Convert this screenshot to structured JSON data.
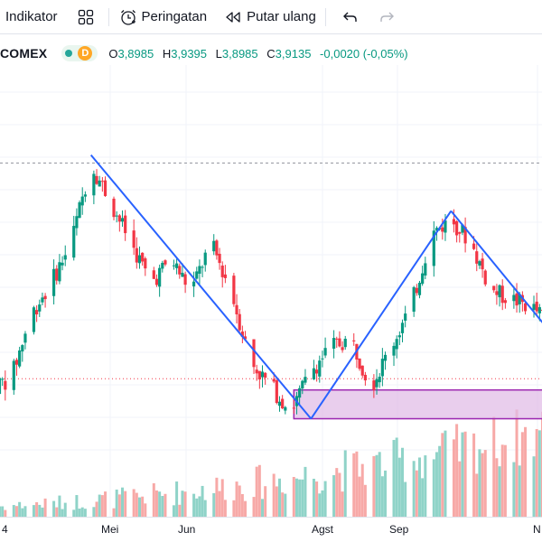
{
  "toolbar": {
    "indicator_label": "Indikator",
    "alert_label": "Peringatan",
    "replay_label": "Putar ulang"
  },
  "legend": {
    "symbol": "COMEX",
    "session_badge": "D",
    "open_label": "O",
    "open": "3,8985",
    "high_label": "H",
    "high": "3,9395",
    "low_label": "L",
    "low": "3,8985",
    "close_label": "C",
    "close": "3,9135",
    "change": "-0,0020 (-0,05%)"
  },
  "time_axis": {
    "left_edge_label": "4",
    "months": [
      "Mei",
      "Jun",
      "Agst",
      "Sep",
      "N"
    ]
  },
  "colors": {
    "up": "#089981",
    "down": "#f23645",
    "pattern_line": "#2962ff",
    "support_zone_fill": "#e1bee7",
    "support_zone_border": "#9c27b0",
    "up_volume": "#8fd3c8",
    "down_volume": "#f7a9a7"
  },
  "chart_data": {
    "type": "candlestick",
    "x_dates": [
      "2025-04-13",
      "2025-04-20",
      "2025-04-27",
      "2025-05-04",
      "2025-05-11",
      "2025-05-18",
      "2025-05-25",
      "2025-06-01",
      "2025-06-08",
      "2025-06-15",
      "2025-06-22",
      "2025-06-29",
      "2025-07-06",
      "2025-07-13",
      "2025-07-20",
      "2025-07-27",
      "2025-08-03",
      "2025-08-10",
      "2025-08-17",
      "2025-08-24",
      "2025-08-31",
      "2025-09-07",
      "2025-09-14",
      "2025-09-21",
      "2025-09-28",
      "2025-10-05",
      "2025-10-12",
      "2025-10-19",
      "2025-10-26"
    ],
    "close": [
      3.3,
      3.35,
      3.75,
      3.95,
      4.2,
      4.7,
      4.45,
      4.2,
      3.95,
      4.1,
      3.9,
      4.2,
      3.9,
      3.45,
      3.3,
      3.15,
      3.4,
      3.55,
      3.6,
      3.3,
      3.55,
      3.8,
      4.25,
      4.35,
      4.2,
      3.9,
      3.85,
      3.8,
      3.7
    ],
    "pattern": "double top",
    "support_zone": [
      3.1,
      3.28
    ],
    "previous_close_level": 3.35,
    "upper_reference_level": 4.7,
    "annotations": [
      "trend line peak (Mei) to trough (Agst)",
      "trend line trough (Agst) to peak (Sep)",
      "descending line from Sep peak"
    ]
  }
}
